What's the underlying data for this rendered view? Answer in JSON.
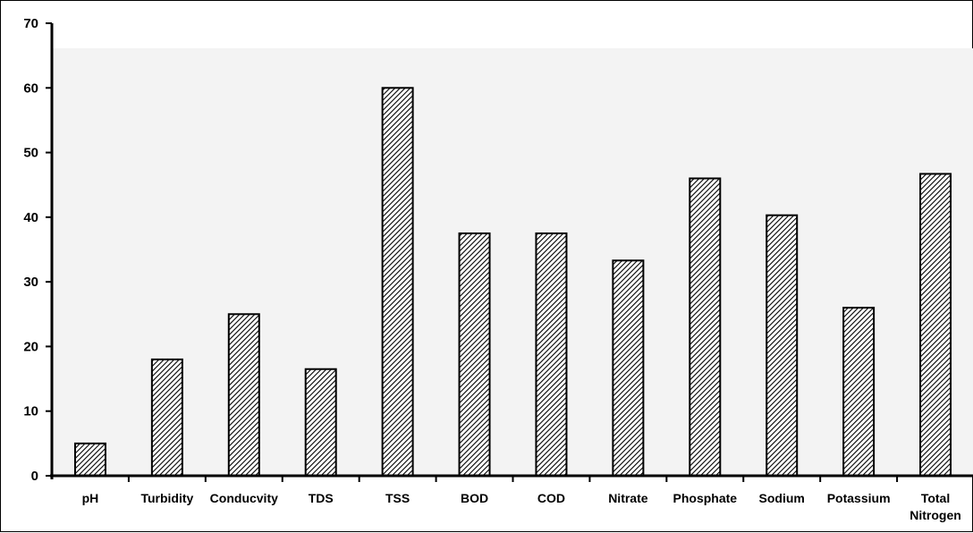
{
  "chart_data": {
    "type": "bar",
    "categories": [
      "pH",
      "Turbidity",
      "Conducvity",
      "TDS",
      "TSS",
      "BOD",
      "COD",
      "Nitrate",
      "Phosphate",
      "Sodium",
      "Potassium",
      "Total Nitrogen"
    ],
    "category_lines": [
      [
        "pH"
      ],
      [
        "Turbidity"
      ],
      [
        "Conducvity"
      ],
      [
        "TDS"
      ],
      [
        "TSS"
      ],
      [
        "BOD"
      ],
      [
        "COD"
      ],
      [
        "Nitrate"
      ],
      [
        "Phosphate"
      ],
      [
        "Sodium"
      ],
      [
        "Potassium"
      ],
      [
        "Total",
        "Nitrogen"
      ]
    ],
    "values": [
      5,
      18,
      25,
      16.5,
      60,
      37.5,
      37.5,
      33.3,
      46,
      40.3,
      26,
      46.7
    ],
    "yticks": [
      0,
      10,
      20,
      30,
      40,
      50,
      60,
      70
    ],
    "ylim": [
      0,
      70
    ],
    "grid": false,
    "legend": "none",
    "colors": {
      "bar_fill": "#ffffff",
      "bar_hatch": "#000000",
      "bar_stroke": "#000000",
      "plot_background": "#f3f3f3",
      "axis": "#000000"
    }
  }
}
